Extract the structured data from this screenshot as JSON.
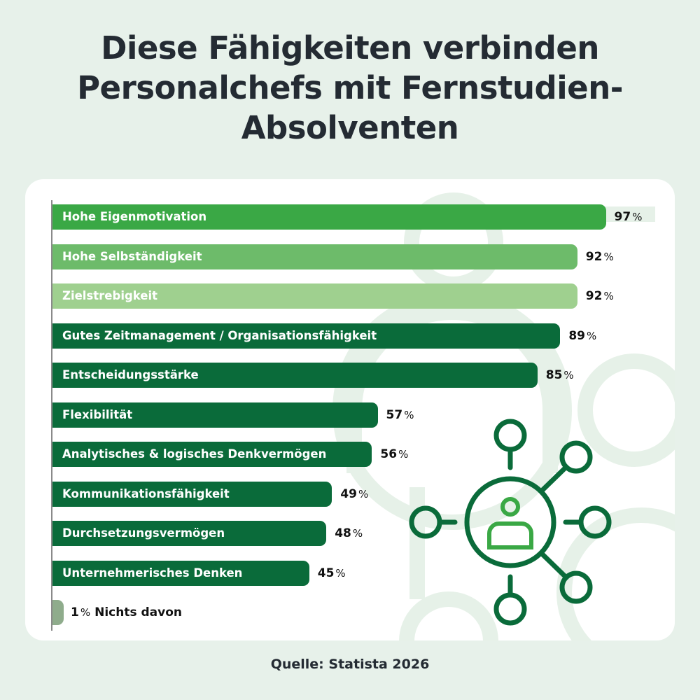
{
  "title": "Diese Fähigkeiten verbinden Personalchefs mit Fernstudien-Absolventen",
  "source": "Quelle: Statista 2026",
  "colors": {
    "background": "#e7f1ea",
    "bright_green": "#3aa845",
    "mid_green": "#6dbb6a",
    "light_green": "#9fd08f",
    "dark_green": "#0a6b3a",
    "grey_green": "#8fac8c"
  },
  "icon": "network-person-icon",
  "chart_data": {
    "type": "bar",
    "orientation": "horizontal",
    "unit": "%",
    "xlim": [
      0,
      100
    ],
    "grid": false,
    "categories": [
      "Hohe Eigenmotivation",
      "Hohe Selbständigkeit",
      "Zielstrebigkeit",
      "Gutes Zeitmanagement / Organisationsfähigkeit",
      "Entscheidungsstärke",
      "Flexibilität",
      "Analytisches & logisches Denkvermögen",
      "Kommunikationsfähigkeit",
      "Durchsetzungsvermögen",
      "Unternehmerisches Denken",
      "Nichts davon"
    ],
    "values": [
      97,
      92,
      92,
      89,
      85,
      57,
      56,
      49,
      48,
      45,
      1
    ],
    "bar_colors": [
      "#3aa845",
      "#6dbb6a",
      "#9fd08f",
      "#0a6b3a",
      "#0a6b3a",
      "#0a6b3a",
      "#0a6b3a",
      "#0a6b3a",
      "#0a6b3a",
      "#0a6b3a",
      "#8fac8c"
    ]
  }
}
